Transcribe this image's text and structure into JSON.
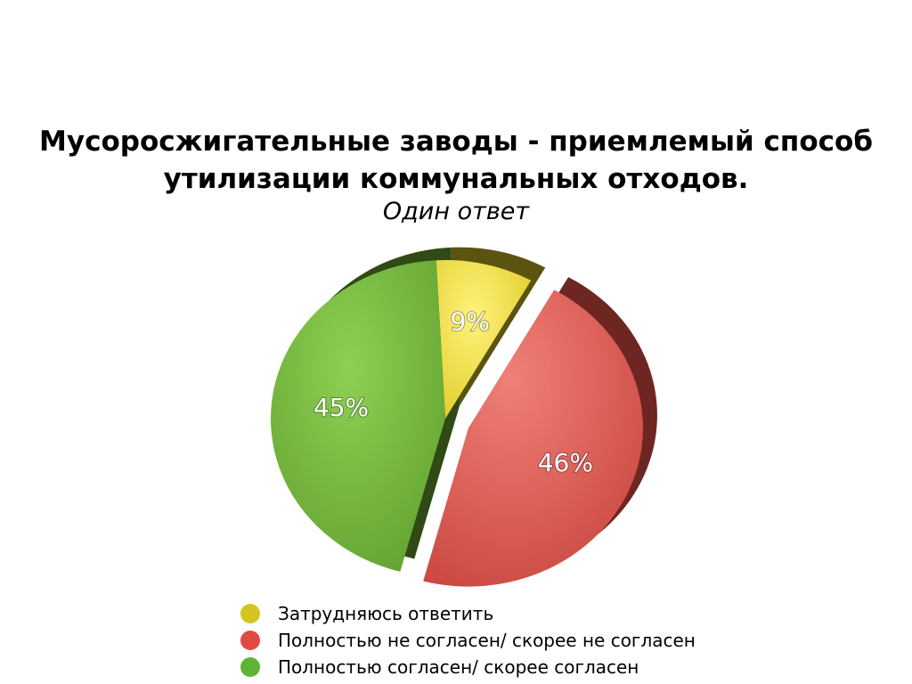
{
  "chart_data": {
    "type": "pie",
    "title_lines": [
      "Мусоросжигательные заводы - приемлемый способ",
      "утилизации коммунальных отходов."
    ],
    "subtitle": "Один ответ",
    "slices": [
      {
        "name": "Затрудняюсь ответить",
        "value": 9,
        "label": "9%",
        "color": "#e8d63a",
        "side_color": "#5a5410",
        "legend_color": "#d4c41f",
        "exploded": false
      },
      {
        "name": "Полностью не согласен/ скорее не согласен",
        "value": 46,
        "label": "46%",
        "color": "#d9574f",
        "side_color": "#6e2622",
        "legend_color": "#e04a42",
        "exploded": true
      },
      {
        "name": "Полностью согласен/ скорее согласен",
        "value": 45,
        "label": "45%",
        "color": "#71b53c",
        "side_color": "#2f4a14",
        "legend_color": "#5db536",
        "exploded": false
      }
    ],
    "legend_position": "bottom"
  }
}
